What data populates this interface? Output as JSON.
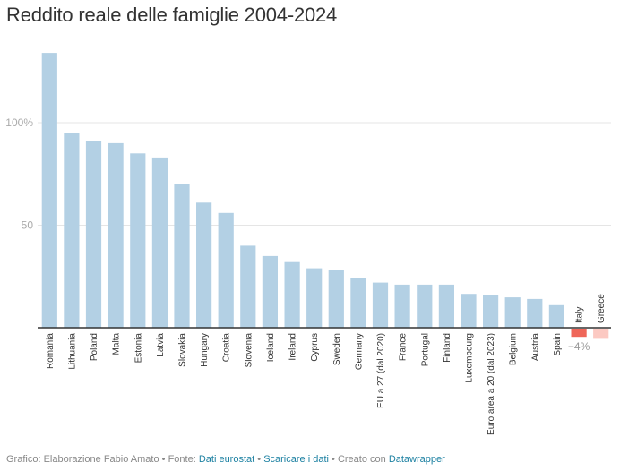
{
  "title": "Reddito reale delle famiglie 2004-2024",
  "chart_data": {
    "type": "bar",
    "title": "Reddito reale delle famiglie 2004-2024",
    "xlabel": "",
    "ylabel": "",
    "ylim": [
      -6,
      136
    ],
    "yticks": [
      {
        "value": 100,
        "label": "100%"
      },
      {
        "value": 50,
        "label": "50"
      }
    ],
    "grid": true,
    "categories": [
      "Romania",
      "Lithuania",
      "Poland",
      "Malta",
      "Estonia",
      "Latvia",
      "Slovakia",
      "Hungary",
      "Croatia",
      "Slovenia",
      "Iceland",
      "Ireland",
      "Cyprus",
      "Sweden",
      "Germany",
      "EU a 27 (dal 2020)",
      "France",
      "Portugal",
      "Finland",
      "Luxembourg",
      "Euro area a 20 (dal 2023)",
      "Belgium",
      "Austria",
      "Spain",
      "Italy",
      "Greece"
    ],
    "values": [
      134,
      95,
      91,
      90,
      85,
      83,
      70,
      61,
      56,
      40,
      35,
      32,
      29,
      28,
      24,
      22,
      21,
      21,
      21,
      16.5,
      15.7,
      14.8,
      14,
      11,
      -4,
      -5
    ],
    "colors": {
      "default": "#b3d0e4",
      "Italy": "#ef6659",
      "Greece": "#fcc9c2"
    },
    "annotations": [
      {
        "category": "Italy",
        "text": "−4%"
      }
    ]
  },
  "footer": {
    "credit": "Grafico: Elaborazione Fabio Amato",
    "source_label": "Fonte:",
    "source_link": "Dati eurostat",
    "download_link": "Scaricare i dati",
    "created_label": "Creato con",
    "tool_link": "Datawrapper",
    "separator": "•"
  }
}
